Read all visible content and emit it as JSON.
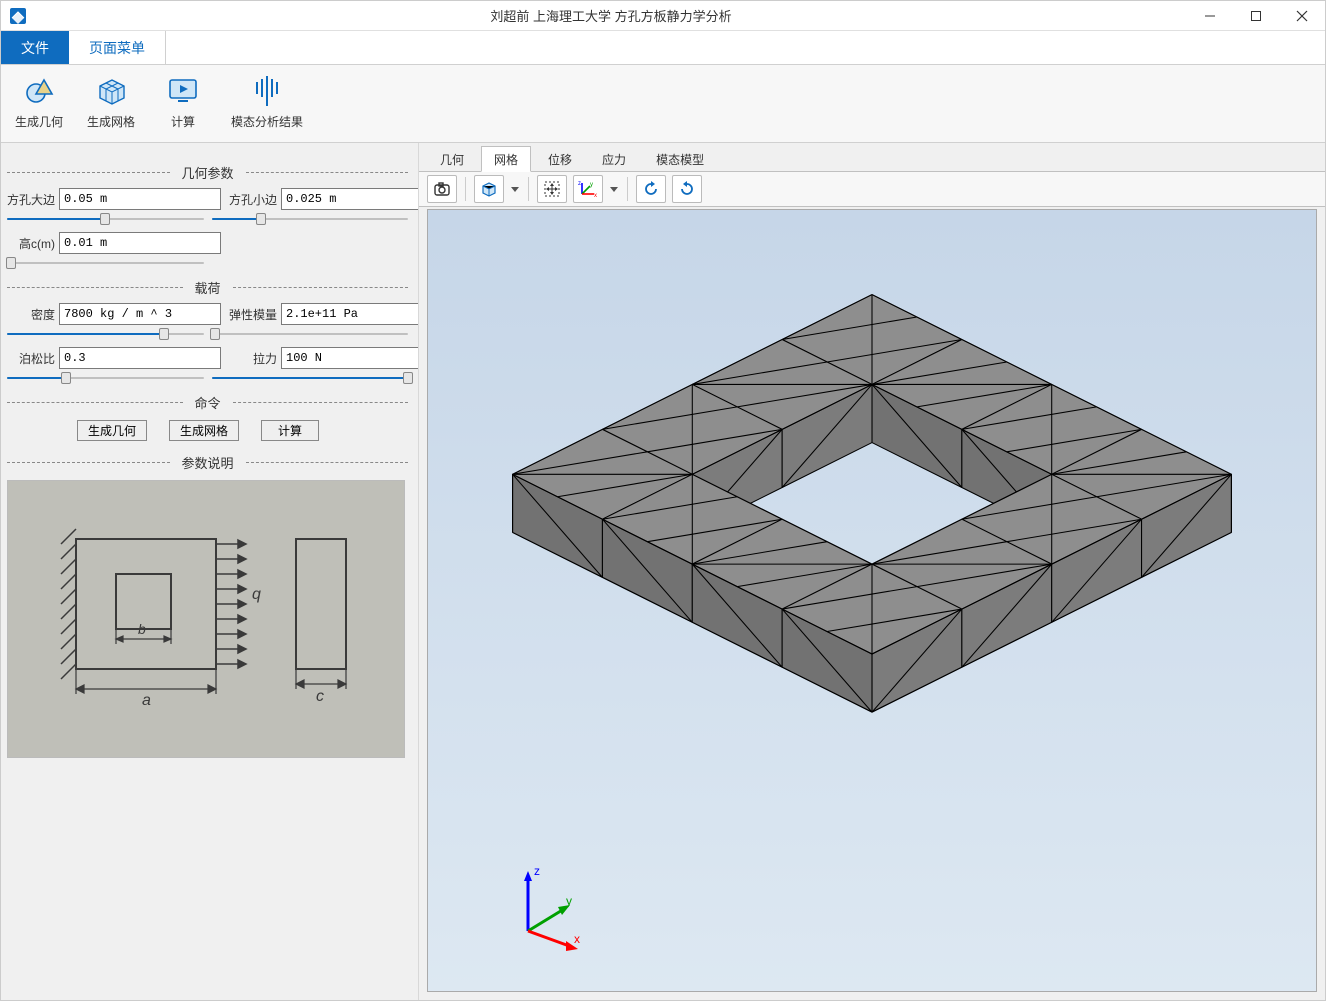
{
  "titlebar": {
    "title": "刘超前   上海理工大学  方孔方板静力学分析"
  },
  "menu_tabs": {
    "file": "文件",
    "page_menu": "页面菜单",
    "active": "page_menu"
  },
  "ribbon": [
    {
      "id": "gen-geom",
      "label": "生成几何",
      "icon": "geom"
    },
    {
      "id": "gen-mesh",
      "label": "生成网格",
      "icon": "mesh"
    },
    {
      "id": "compute",
      "label": "计算",
      "icon": "play"
    },
    {
      "id": "modal-res",
      "label": "模态分析结果",
      "icon": "bars"
    }
  ],
  "sections": {
    "geom": {
      "title": "几何参数",
      "fields": [
        {
          "id": "big-edge",
          "label": "方孔大边",
          "value": "0.05 m",
          "fill": 0.5
        },
        {
          "id": "small-edge",
          "label": "方孔小边",
          "value": "0.025 m",
          "fill": 0.25
        },
        {
          "id": "height-c",
          "label": "高c(m)",
          "value": "0.01 m",
          "fill": 0.02
        }
      ]
    },
    "load": {
      "title": "载荷",
      "fields": [
        {
          "id": "density",
          "label": "密度",
          "value": "7800 kg / m ^ 3",
          "fill": 0.8
        },
        {
          "id": "young",
          "label": "弹性模量",
          "value": "2.1e+11 Pa",
          "fill": 0.02
        },
        {
          "id": "poisson",
          "label": "泊松比",
          "value": "0.3",
          "fill": 0.3
        },
        {
          "id": "tension",
          "label": "拉力",
          "value": "100 N",
          "fill": 1.0
        }
      ]
    },
    "commands": {
      "title": "命令",
      "buttons": [
        {
          "id": "btn-gen-geom",
          "label": "生成几何"
        },
        {
          "id": "btn-gen-mesh",
          "label": "生成网格"
        },
        {
          "id": "btn-compute",
          "label": "计算"
        }
      ]
    },
    "explain": {
      "title": "参数说明"
    }
  },
  "viewer": {
    "tabs": [
      {
        "id": "geom",
        "label": "几何"
      },
      {
        "id": "mesh",
        "label": "网格",
        "active": true
      },
      {
        "id": "disp",
        "label": "位移"
      },
      {
        "id": "stress",
        "label": "应力"
      },
      {
        "id": "modal",
        "label": "模态模型"
      }
    ],
    "toolbar_icons": [
      "camera",
      "cube",
      "fit",
      "axes-xyz",
      "rotate-cw",
      "rotate-ccw"
    ],
    "canvas": {
      "background_top": "#c6d6e8",
      "background_bottom": "#dde8f2",
      "mesh_face_color": "#8e8e8e",
      "mesh_edge_color": "#000000",
      "triad": {
        "x": "#ff0000",
        "y": "#00a000",
        "z": "#0000ff",
        "labels": [
          "x",
          "y",
          "z"
        ]
      }
    }
  },
  "colors": {
    "accent": "#0f6cbf",
    "window_bg": "#f0f0f0",
    "panel_bg": "#f7f7f7",
    "border": "#c0c0c0"
  },
  "diagram": {
    "bg": "#bfbfb8",
    "ink": "#3a3a3a",
    "labels": {
      "a": "a",
      "b": "b",
      "c": "c",
      "q": "q"
    }
  }
}
